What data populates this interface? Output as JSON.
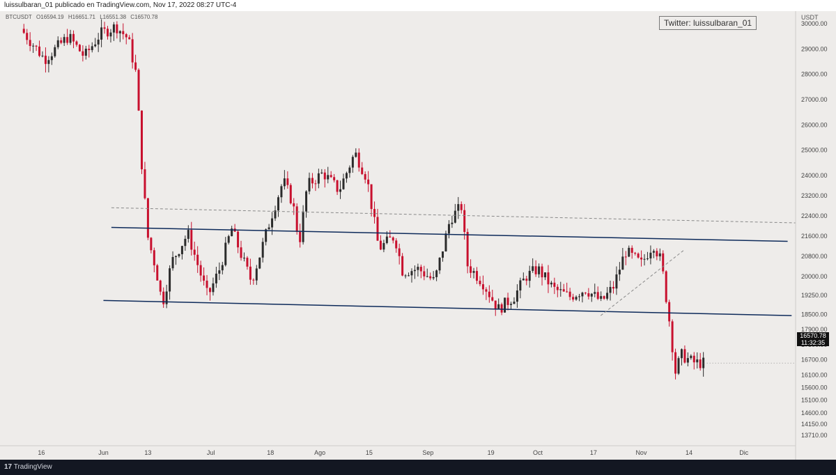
{
  "header": {
    "text": "luissulbaran_01 publicado en TradingView.com, Nov 17, 2022 08:27 UTC-4"
  },
  "symbol": {
    "text": "BTCUSDT",
    "o": "O16594.19",
    "h": "H16651.71",
    "l": "L16551.38",
    "c": "C16570.78"
  },
  "watermark": {
    "text": "Twitter: luissulbaran_01"
  },
  "price_tag": {
    "price": "16570.78",
    "time": "11:32:35"
  },
  "footer": {
    "brand": "TradingView"
  },
  "colors": {
    "up": "#2b2b2b",
    "down": "#c8102e",
    "trend": "#0d2a5a",
    "dashed": "#888888"
  },
  "chart_data": {
    "type": "candlestick",
    "ylabel": "USDT",
    "ylim": [
      13300,
      30500
    ],
    "y_ticks": [
      30000,
      29000,
      28000,
      27000,
      26000,
      25000,
      24000,
      23200,
      22400,
      21600,
      20800,
      20000,
      19250,
      18500,
      17900,
      17300,
      16700,
      16100,
      15600,
      15100,
      14600,
      14150,
      13710
    ],
    "y_tick_labels": [
      "30000.00",
      "29000.00",
      "28000.00",
      "27000.00",
      "26000.00",
      "25000.00",
      "24000.00",
      "23200.00",
      "22400.00",
      "21600.00",
      "20800.00",
      "20000.00",
      "19250.00",
      "18500.00",
      "17900.00",
      "17300.00",
      "16700.00",
      "16100.00",
      "15600.00",
      "15100.00",
      "14600.00",
      "14150.00",
      "13710.00"
    ],
    "x_ticks": [
      "16",
      "Jun",
      "13",
      "Jul",
      "18",
      "Ago",
      "15",
      "Sep",
      "19",
      "Oct",
      "17",
      "Nov",
      "14",
      "Dic"
    ],
    "x_tick_positions": [
      0.052,
      0.13,
      0.186,
      0.265,
      0.34,
      0.402,
      0.464,
      0.538,
      0.617,
      0.676,
      0.746,
      0.806,
      0.866,
      0.935
    ],
    "last_price": 16570.78,
    "price_path": [
      [
        0.0,
        30200
      ],
      [
        0.03,
        29800
      ],
      [
        0.06,
        28600
      ],
      [
        0.09,
        29500
      ],
      [
        0.11,
        28700
      ],
      [
        0.13,
        29600
      ],
      [
        0.15,
        29900
      ],
      [
        0.165,
        29400
      ],
      [
        0.175,
        28000
      ],
      [
        0.183,
        24000
      ],
      [
        0.19,
        21500
      ],
      [
        0.2,
        20300
      ],
      [
        0.208,
        18900
      ],
      [
        0.22,
        20600
      ],
      [
        0.24,
        21700
      ],
      [
        0.255,
        20200
      ],
      [
        0.265,
        19200
      ],
      [
        0.28,
        20300
      ],
      [
        0.295,
        21900
      ],
      [
        0.31,
        20600
      ],
      [
        0.32,
        19800
      ],
      [
        0.33,
        20800
      ],
      [
        0.345,
        22400
      ],
      [
        0.36,
        23800
      ],
      [
        0.372,
        22900
      ],
      [
        0.38,
        21300
      ],
      [
        0.39,
        23600
      ],
      [
        0.41,
        24100
      ],
      [
        0.43,
        23400
      ],
      [
        0.45,
        24900
      ],
      [
        0.465,
        23900
      ],
      [
        0.48,
        21100
      ],
      [
        0.5,
        21600
      ],
      [
        0.51,
        20200
      ],
      [
        0.53,
        20300
      ],
      [
        0.55,
        19800
      ],
      [
        0.57,
        22300
      ],
      [
        0.585,
        22800
      ],
      [
        0.59,
        20500
      ],
      [
        0.61,
        19800
      ],
      [
        0.63,
        18700
      ],
      [
        0.65,
        19200
      ],
      [
        0.665,
        20000
      ],
      [
        0.68,
        20300
      ],
      [
        0.7,
        19500
      ],
      [
        0.72,
        19200
      ],
      [
        0.74,
        19500
      ],
      [
        0.76,
        19000
      ],
      [
        0.775,
        19600
      ],
      [
        0.79,
        21000
      ],
      [
        0.81,
        20500
      ],
      [
        0.825,
        21300
      ],
      [
        0.835,
        20600
      ],
      [
        0.845,
        18300
      ],
      [
        0.853,
        16200
      ],
      [
        0.86,
        16900
      ],
      [
        0.875,
        16600
      ],
      [
        0.885,
        16570
      ]
    ],
    "trendlines": [
      {
        "x1": 0.14,
        "y1": 21940,
        "x2": 0.99,
        "y2": 21390,
        "style": "solid"
      },
      {
        "x1": 0.13,
        "y1": 19050,
        "x2": 0.995,
        "y2": 18450,
        "style": "solid"
      },
      {
        "x1": 0.14,
        "y1": 22720,
        "x2": 1.0,
        "y2": 22120,
        "style": "dashed"
      },
      {
        "x1": 0.755,
        "y1": 18450,
        "x2": 0.86,
        "y2": 21050,
        "style": "dashed"
      }
    ],
    "grid": false
  }
}
